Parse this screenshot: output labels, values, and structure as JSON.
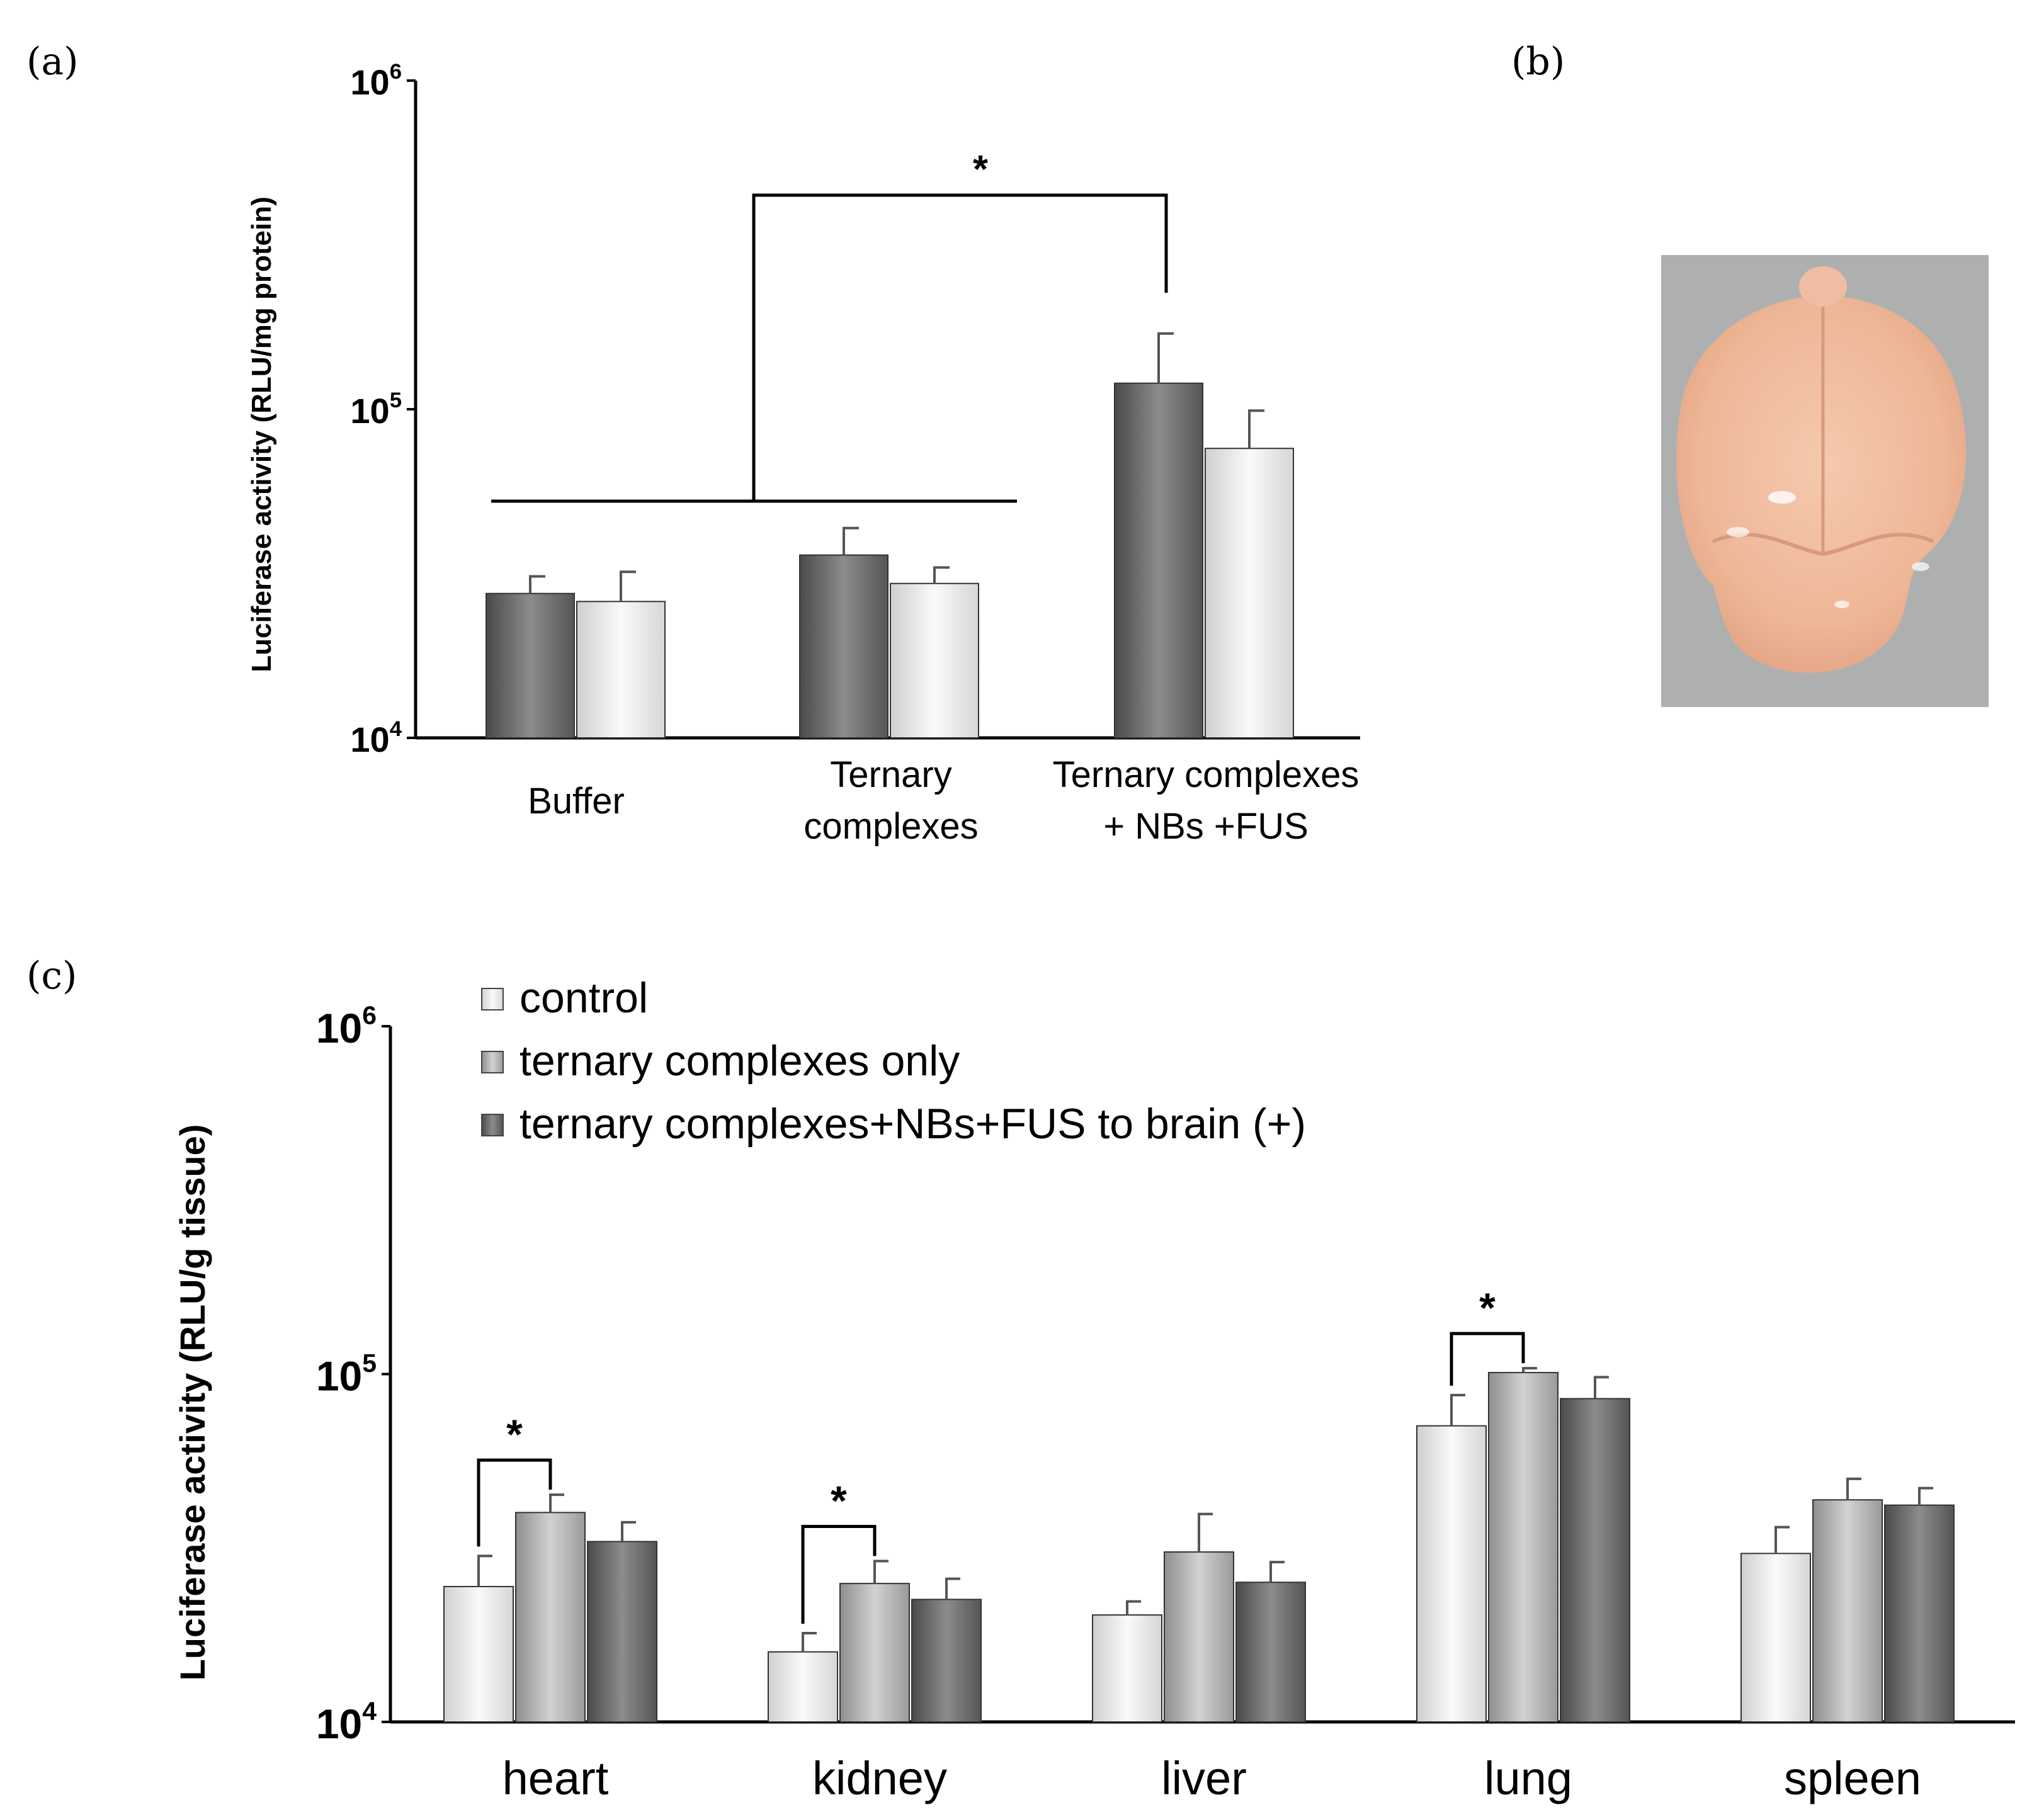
{
  "panels": {
    "a": "(a)",
    "b": "(b)",
    "c": "(c)"
  },
  "chart_data": [
    {
      "id": "a",
      "type": "bar",
      "scale": "log",
      "ylabel": "Luciferase activity (RLU/mg protein)",
      "yticks": [
        {
          "value": 10000,
          "base": "10",
          "exp": "4"
        },
        {
          "value": 100000,
          "base": "10",
          "exp": "5"
        },
        {
          "value": 1000000,
          "base": "10",
          "exp": "6"
        }
      ],
      "ylim": [
        10000,
        1000000
      ],
      "categories": [
        {
          "lines": [
            "Buffer"
          ]
        },
        {
          "lines": [
            "Ternary",
            "complexes"
          ]
        },
        {
          "lines": [
            "Ternary complexes",
            "+ NBs +FUS"
          ]
        }
      ],
      "series": [
        {
          "name": "dark",
          "color": "#6f6f6f",
          "values": [
            27500,
            36000,
            120000
          ],
          "errors": [
            31000,
            43500,
            170000
          ]
        },
        {
          "name": "light",
          "color": "#e6e6e6",
          "values": [
            26000,
            29500,
            76000
          ],
          "errors": [
            32000,
            33000,
            99000
          ]
        }
      ],
      "significance": [
        {
          "label": "*",
          "between": "Buffer & Ternary complexes vs Ternary complexes + NBs +FUS"
        }
      ]
    },
    {
      "id": "c",
      "type": "bar",
      "scale": "log",
      "ylabel": "Luciferase activity (RLU/g tissue)",
      "yticks": [
        {
          "value": 10000,
          "base": "10",
          "exp": "4"
        },
        {
          "value": 100000,
          "base": "10",
          "exp": "5"
        },
        {
          "value": 1000000,
          "base": "10",
          "exp": "6"
        }
      ],
      "ylim": [
        10000,
        1000000
      ],
      "categories": [
        "heart",
        "kidney",
        "liver",
        "lung",
        "spleen"
      ],
      "legend": [
        "control",
        "ternary complexes only",
        "ternary complexes+NBs+FUS to brain (+)"
      ],
      "series": [
        {
          "name": "control",
          "color": "#f2f2f2",
          "values": [
            24500,
            15900,
            20300,
            71000,
            30500
          ],
          "errors": [
            30000,
            18000,
            22200,
            87000,
            36300
          ]
        },
        {
          "name": "ternary complexes only",
          "color": "#b9b9b9",
          "values": [
            40000,
            25000,
            30800,
            101000,
            43500
          ],
          "errors": [
            45000,
            29000,
            39600,
            104000,
            50000
          ]
        },
        {
          "name": "ternary complexes+NBs+FUS to brain (+)",
          "color": "#6a6a6a",
          "values": [
            33000,
            22500,
            25200,
            85000,
            42000
          ],
          "errors": [
            37500,
            25800,
            28800,
            98000,
            47000
          ]
        }
      ],
      "significance": [
        {
          "label": "*",
          "category": "heart"
        },
        {
          "label": "*",
          "category": "kidney"
        },
        {
          "label": "*",
          "category": "lung"
        }
      ]
    }
  ],
  "image_b": {
    "icon": "mouse-brain-photo"
  }
}
